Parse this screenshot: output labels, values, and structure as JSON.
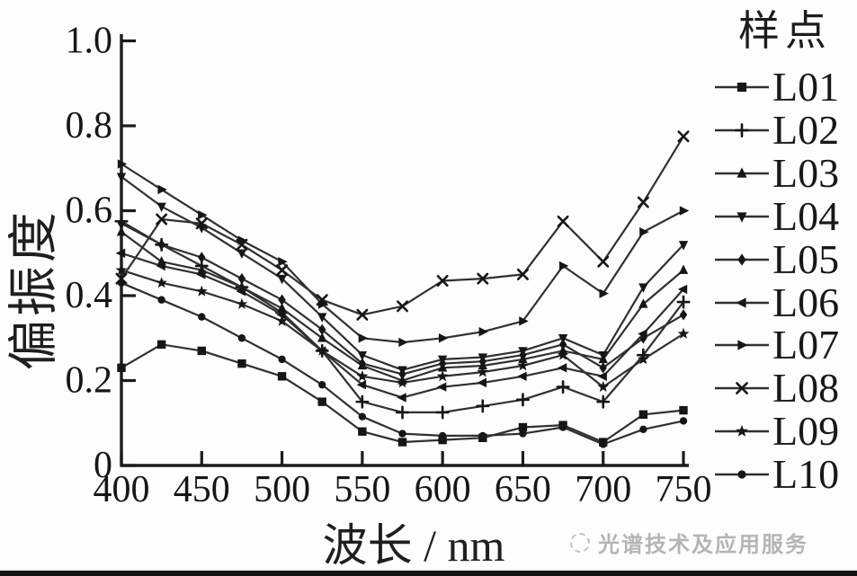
{
  "page": {
    "background": "#fdfdfd",
    "bottom_bar_color": "#151515"
  },
  "watermark": {
    "icon": "dotted-circle-logo",
    "text": "光谱技术及应用服务",
    "color": "#b5b5b5"
  },
  "chart_data": {
    "type": "line",
    "title": "",
    "xlabel": "波长 / nm",
    "ylabel": "偏振度",
    "legend_title": "样点",
    "legend_position": "right",
    "grid": false,
    "xlim": [
      400,
      750
    ],
    "ylim": [
      0,
      1.0
    ],
    "x_ticks": [
      400,
      450,
      500,
      550,
      600,
      650,
      700,
      750
    ],
    "y_ticks": [
      0,
      0.2,
      0.4,
      0.6,
      0.8,
      1.0
    ],
    "y_tick_labels": [
      "0",
      "0.2",
      "0.4",
      "0.6",
      "0.8",
      "1.0"
    ],
    "line_color": "#303030",
    "marker_color": "#161616",
    "x": [
      400,
      425,
      450,
      475,
      500,
      525,
      550,
      575,
      600,
      625,
      650,
      675,
      700,
      725,
      750
    ],
    "series": [
      {
        "name": "L01",
        "marker": "square",
        "values": [
          0.23,
          0.285,
          0.27,
          0.24,
          0.21,
          0.15,
          0.08,
          0.055,
          0.06,
          0.065,
          0.09,
          0.095,
          0.055,
          0.12,
          0.13
        ]
      },
      {
        "name": "L02",
        "marker": "plus",
        "values": [
          0.575,
          0.52,
          0.47,
          0.42,
          0.36,
          0.27,
          0.15,
          0.125,
          0.125,
          0.14,
          0.155,
          0.185,
          0.15,
          0.26,
          0.385
        ]
      },
      {
        "name": "L03",
        "marker": "triangle-up",
        "values": [
          0.55,
          0.48,
          0.46,
          0.42,
          0.37,
          0.3,
          0.235,
          0.2,
          0.23,
          0.235,
          0.25,
          0.27,
          0.25,
          0.38,
          0.46
        ]
      },
      {
        "name": "L04",
        "marker": "triangle-down",
        "values": [
          0.68,
          0.61,
          0.56,
          0.5,
          0.44,
          0.35,
          0.26,
          0.225,
          0.25,
          0.255,
          0.27,
          0.3,
          0.26,
          0.42,
          0.52
        ]
      },
      {
        "name": "L05",
        "marker": "diamond",
        "values": [
          0.57,
          0.52,
          0.49,
          0.44,
          0.39,
          0.32,
          0.24,
          0.215,
          0.24,
          0.245,
          0.26,
          0.285,
          0.23,
          0.3,
          0.355
        ]
      },
      {
        "name": "L06",
        "marker": "triangle-left",
        "values": [
          0.5,
          0.47,
          0.45,
          0.41,
          0.355,
          0.27,
          0.19,
          0.16,
          0.185,
          0.195,
          0.21,
          0.23,
          0.21,
          0.31,
          0.415
        ]
      },
      {
        "name": "L07",
        "marker": "triangle-right",
        "values": [
          0.71,
          0.65,
          0.59,
          0.53,
          0.48,
          0.38,
          0.3,
          0.29,
          0.3,
          0.315,
          0.34,
          0.47,
          0.405,
          0.55,
          0.6
        ]
      },
      {
        "name": "L08",
        "marker": "x",
        "values": [
          0.44,
          0.58,
          0.57,
          0.52,
          0.46,
          0.39,
          0.355,
          0.375,
          0.435,
          0.44,
          0.45,
          0.575,
          0.48,
          0.62,
          0.775
        ]
      },
      {
        "name": "L09",
        "marker": "star",
        "values": [
          0.46,
          0.43,
          0.41,
          0.38,
          0.34,
          0.27,
          0.21,
          0.195,
          0.21,
          0.22,
          0.235,
          0.26,
          0.185,
          0.25,
          0.31
        ]
      },
      {
        "name": "L10",
        "marker": "circle",
        "values": [
          0.43,
          0.39,
          0.35,
          0.3,
          0.25,
          0.19,
          0.115,
          0.075,
          0.07,
          0.07,
          0.075,
          0.09,
          0.05,
          0.085,
          0.105
        ]
      }
    ]
  }
}
